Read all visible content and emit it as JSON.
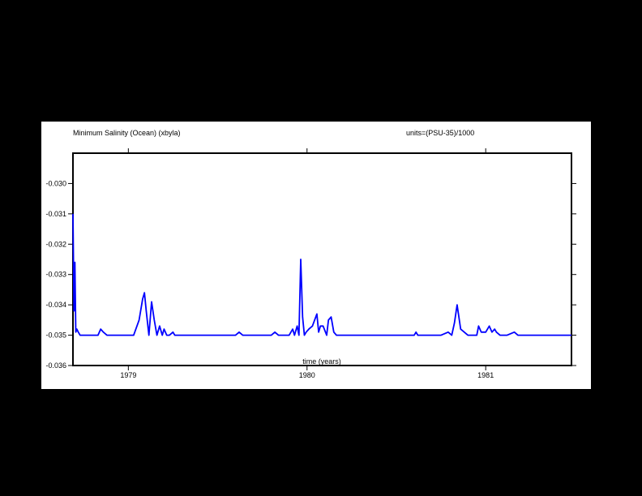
{
  "chart_data": {
    "type": "line",
    "title": "Minimum Salinity (Ocean) (xbyla)",
    "units_label": "units=(PSU-35)/1000",
    "xlabel": "time (years)",
    "ylabel": "",
    "x_unit": "years",
    "xlim": [
      1978.69,
      1981.48
    ],
    "ylim": [
      -0.036,
      -0.029
    ],
    "x_ticks": [
      {
        "value": 1979,
        "label": "1979"
      },
      {
        "value": 1980,
        "label": "1980"
      },
      {
        "value": 1981,
        "label": "1981"
      }
    ],
    "y_ticks": [
      {
        "value": -0.03,
        "label": "-0.030"
      },
      {
        "value": -0.031,
        "label": "-0.031"
      },
      {
        "value": -0.032,
        "label": "-0.032"
      },
      {
        "value": -0.033,
        "label": "-0.033"
      },
      {
        "value": -0.034,
        "label": "-0.034"
      },
      {
        "value": -0.035,
        "label": "-0.035"
      },
      {
        "value": -0.036,
        "label": "-0.036"
      }
    ],
    "grid": false,
    "series": [
      {
        "color": "#0000ff",
        "x": [
          1978.69,
          1978.696,
          1978.701,
          1978.706,
          1978.712,
          1978.72,
          1978.73,
          1978.76,
          1978.8,
          1978.83,
          1978.845,
          1978.86,
          1978.88,
          1978.92,
          1978.95,
          1978.99,
          1979.03,
          1979.06,
          1979.08,
          1979.09,
          1979.1,
          1979.115,
          1979.13,
          1979.145,
          1979.16,
          1979.175,
          1979.19,
          1979.2,
          1979.215,
          1979.23,
          1979.25,
          1979.26,
          1979.275,
          1979.3,
          1979.35,
          1979.45,
          1979.55,
          1979.6,
          1979.62,
          1979.64,
          1979.7,
          1979.75,
          1979.8,
          1979.82,
          1979.84,
          1979.86,
          1979.88,
          1979.9,
          1979.92,
          1979.93,
          1979.945,
          1979.955,
          1979.965,
          1979.975,
          1979.985,
          1979.995,
          1980.01,
          1980.03,
          1980.055,
          1980.065,
          1980.075,
          1980.09,
          1980.11,
          1980.12,
          1980.135,
          1980.15,
          1980.165,
          1980.18,
          1980.2,
          1980.3,
          1980.4,
          1980.5,
          1980.6,
          1980.61,
          1980.62,
          1980.65,
          1980.7,
          1980.75,
          1980.79,
          1980.81,
          1980.825,
          1980.84,
          1980.86,
          1980.9,
          1980.95,
          1980.96,
          1980.975,
          1981.0,
          1981.02,
          1981.035,
          1981.05,
          1981.06,
          1981.08,
          1981.1,
          1981.12,
          1981.16,
          1981.18,
          1981.2,
          1981.25,
          1981.3,
          1981.35,
          1981.4,
          1981.45,
          1981.48
        ],
        "y": [
          -0.031,
          -0.0342,
          -0.0326,
          -0.0349,
          -0.0348,
          -0.0349,
          -0.035,
          -0.035,
          -0.035,
          -0.035,
          -0.0348,
          -0.0349,
          -0.035,
          -0.035,
          -0.035,
          -0.035,
          -0.035,
          -0.0345,
          -0.0338,
          -0.0336,
          -0.0342,
          -0.035,
          -0.0339,
          -0.0345,
          -0.035,
          -0.0347,
          -0.035,
          -0.0348,
          -0.035,
          -0.035,
          -0.0349,
          -0.035,
          -0.035,
          -0.035,
          -0.035,
          -0.035,
          -0.035,
          -0.035,
          -0.0349,
          -0.035,
          -0.035,
          -0.035,
          -0.035,
          -0.0349,
          -0.035,
          -0.035,
          -0.035,
          -0.035,
          -0.0348,
          -0.035,
          -0.0347,
          -0.035,
          -0.0325,
          -0.0344,
          -0.035,
          -0.0349,
          -0.0348,
          -0.0347,
          -0.0343,
          -0.0349,
          -0.0347,
          -0.0347,
          -0.035,
          -0.0345,
          -0.0344,
          -0.0349,
          -0.035,
          -0.035,
          -0.035,
          -0.035,
          -0.035,
          -0.035,
          -0.035,
          -0.0349,
          -0.035,
          -0.035,
          -0.035,
          -0.035,
          -0.0349,
          -0.035,
          -0.0346,
          -0.034,
          -0.0348,
          -0.035,
          -0.035,
          -0.0347,
          -0.0349,
          -0.0349,
          -0.0347,
          -0.0349,
          -0.0348,
          -0.0349,
          -0.035,
          -0.035,
          -0.035,
          -0.0349,
          -0.035,
          -0.035,
          -0.035,
          -0.035,
          -0.035,
          -0.035,
          -0.035,
          -0.035
        ]
      }
    ]
  }
}
